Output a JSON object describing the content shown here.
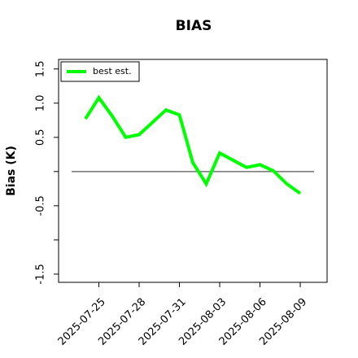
{
  "chart_data": {
    "type": "line",
    "title": "BIAS",
    "y_label": "Bias (K)",
    "x": [
      "2025-07-24",
      "2025-07-25",
      "2025-07-26",
      "2025-07-27",
      "2025-07-28",
      "2025-07-30",
      "2025-07-31",
      "2025-08-01",
      "2025-08-02",
      "2025-08-03",
      "2025-08-05",
      "2025-08-06",
      "2025-08-07",
      "2025-08-08",
      "2025-08-09"
    ],
    "series": [
      {
        "name": "best est.",
        "color": "#00ff00",
        "values": [
          0.77,
          1.08,
          0.81,
          0.5,
          0.54,
          0.9,
          0.83,
          0.13,
          -0.18,
          0.27,
          0.06,
          0.1,
          0.01,
          -0.18,
          -0.32
        ]
      }
    ],
    "xlim": [
      "2025-07-22",
      "2025-08-11"
    ],
    "xticks": [
      "2025-07-25",
      "2025-07-28",
      "2025-07-31",
      "2025-08-03",
      "2025-08-06",
      "2025-08-09"
    ],
    "ylim": [
      -1.62,
      1.64
    ],
    "yticks": [
      {
        "value": -1.5,
        "label": "-1.5"
      },
      -0.5,
      0.5,
      {
        "value": 1,
        "label": "1.0"
      },
      1.5
    ],
    "yticks_unlabeled": [
      -1,
      0
    ],
    "hline": 0,
    "legend": "upper left"
  }
}
